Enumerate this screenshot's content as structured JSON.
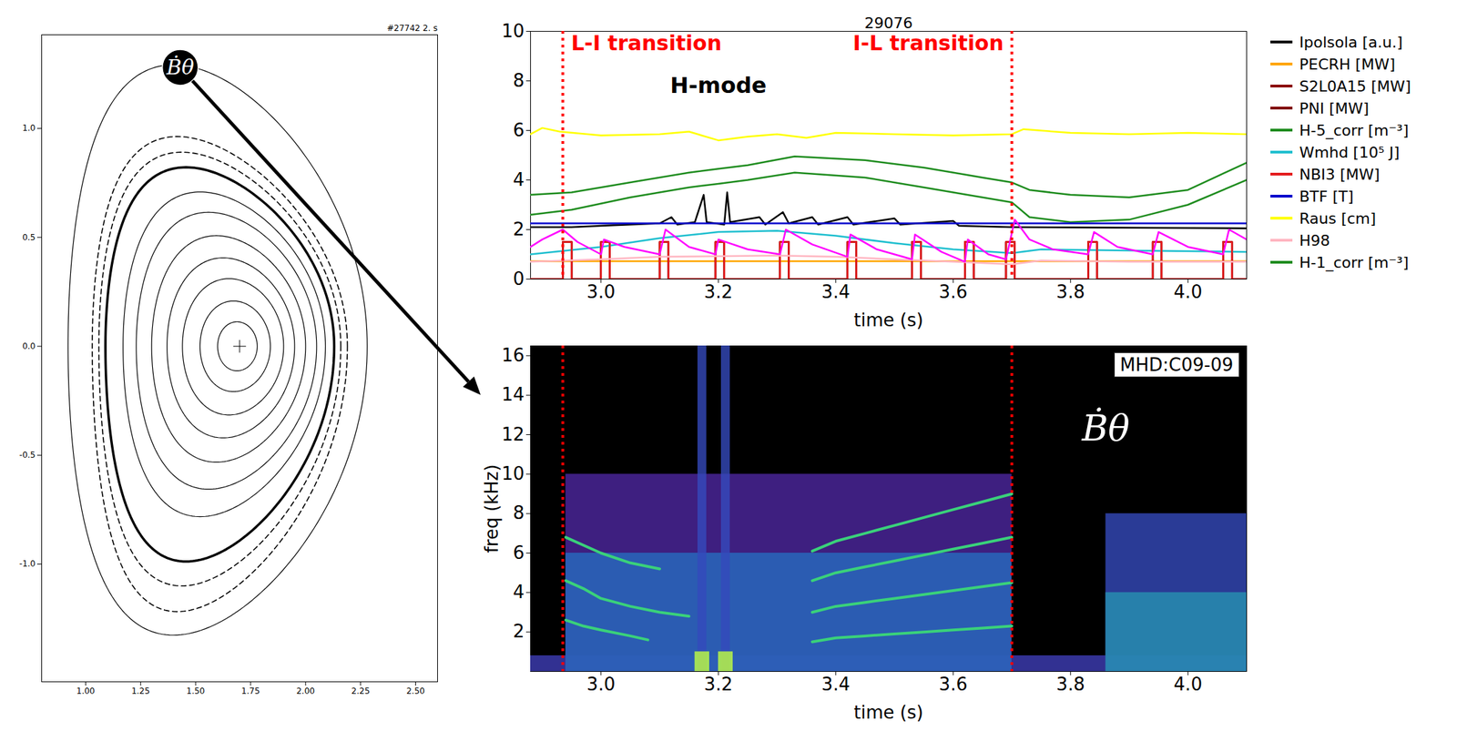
{
  "chart_data": [
    {
      "type": "equilibrium",
      "title": "#27742 2. s",
      "xlim": [
        0.8,
        2.6
      ],
      "xticks": [
        {
          "value": 1,
          "label": "1.00"
        },
        1.25,
        {
          "value": 1.5,
          "label": "1.50"
        },
        1.75,
        {
          "value": 2,
          "label": "2.00"
        },
        2.25,
        {
          "value": 2.5,
          "label": "2.50"
        }
      ],
      "ylim": [
        -1.54,
        1.43
      ],
      "yticks": [
        {
          "value": -1,
          "label": "-1.0"
        },
        -0.5,
        {
          "value": 0,
          "label": "0.0"
        },
        0.5,
        {
          "value": 1,
          "label": "1.0"
        }
      ],
      "surfaces": [
        {
          "R0": 1.69,
          "a": 0.09,
          "kappa": 1.25,
          "kappa_lower": 1.25,
          "delta": 0.02,
          "line_style": "solid"
        },
        {
          "R0": 1.68,
          "a": 0.16,
          "kappa": 1.3,
          "kappa_lower": 1.3,
          "delta": 0.05,
          "line_style": "solid"
        },
        {
          "R0": 1.67,
          "a": 0.23,
          "kappa": 1.35,
          "kappa_lower": 1.37,
          "delta": 0.08,
          "line_style": "solid"
        },
        {
          "R0": 1.66,
          "a": 0.29,
          "kappa": 1.4,
          "kappa_lower": 1.45,
          "delta": 0.12,
          "line_style": "solid"
        },
        {
          "R0": 1.65,
          "a": 0.35,
          "kappa": 1.45,
          "kappa_lower": 1.52,
          "delta": 0.16,
          "line_style": "solid"
        },
        {
          "R0": 1.64,
          "a": 0.41,
          "kappa": 1.5,
          "kappa_lower": 1.6,
          "delta": 0.2,
          "line_style": "solid"
        },
        {
          "R0": 1.63,
          "a": 0.46,
          "kappa": 1.54,
          "kappa_lower": 1.7,
          "delta": 0.24,
          "line_style": "solid"
        },
        {
          "R0": 1.61,
          "a": 0.52,
          "kappa": 1.58,
          "kappa_lower": 1.9,
          "delta": 0.3,
          "line_style": "thick"
        },
        {
          "R0": 1.61,
          "a": 0.55,
          "kappa": 1.62,
          "kappa_lower": 2.0,
          "delta": 0.32,
          "line_style": "dashed"
        },
        {
          "R0": 1.61,
          "a": 0.58,
          "kappa": 1.66,
          "kappa_lower": 2.1,
          "delta": 0.34,
          "line_style": "dashed"
        },
        {
          "R0": 1.6,
          "a": 0.68,
          "kappa": 1.9,
          "kappa_lower": 1.95,
          "delta": 0.3,
          "line_style": "solid"
        }
      ],
      "magnetic_axis": [
        1.7,
        0.0
      ],
      "probe": [
        1.43,
        1.28
      ],
      "probe_label": "Ḃθ"
    },
    {
      "type": "line",
      "title": "29076",
      "xlabel": "time (s)",
      "xlim": [
        2.88,
        4.1
      ],
      "xticks": [
        {
          "value": 3,
          "label": "3.0"
        },
        3.2,
        3.4,
        3.6,
        3.8,
        {
          "value": 4,
          "label": "4.0"
        }
      ],
      "ylim": [
        0,
        10
      ],
      "yticks": [
        0,
        2,
        4,
        6,
        8,
        10
      ],
      "legend": "right",
      "events": [
        {
          "x": 2.935,
          "label": "L-I transition"
        },
        {
          "x": 3.7,
          "label": "I-L transition"
        }
      ],
      "annotations": [
        {
          "text": "H-mode",
          "x": 3.2,
          "y": 7.8
        }
      ],
      "series": [
        {
          "name": "Ipolsola [a.u.]",
          "color": "#000000",
          "x": [
            2.88,
            2.95,
            3.0,
            3.05,
            3.1,
            3.12,
            3.13,
            3.16,
            3.175,
            3.18,
            3.21,
            3.215,
            3.22,
            3.27,
            3.28,
            3.31,
            3.32,
            3.36,
            3.37,
            3.42,
            3.43,
            3.5,
            3.51,
            3.6,
            3.61,
            3.7,
            4.1
          ],
          "values": [
            2.1,
            2.1,
            2.15,
            2.2,
            2.25,
            2.5,
            2.2,
            2.3,
            3.4,
            2.3,
            2.2,
            3.5,
            2.3,
            2.5,
            2.2,
            2.7,
            2.25,
            2.5,
            2.2,
            2.5,
            2.2,
            2.45,
            2.2,
            2.35,
            2.15,
            2.1,
            2.05
          ]
        },
        {
          "name": "PECRH [MW]",
          "color": "#ffa500",
          "x": [
            2.88,
            4.1
          ],
          "values": [
            0.72,
            0.72
          ]
        },
        {
          "name": "S2L0A15 [MW]",
          "color": "#8b0000",
          "x": [
            2.88,
            2.935,
            2.935,
            2.95,
            2.95,
            3.0,
            3.0,
            3.015,
            3.015,
            3.1,
            3.1,
            3.115,
            3.115,
            3.195,
            3.195,
            3.21,
            3.21,
            3.305,
            3.305,
            3.32,
            3.32,
            3.42,
            3.42,
            3.435,
            3.435,
            3.53,
            3.53,
            3.545,
            3.545,
            3.62,
            3.62,
            3.635,
            3.635,
            3.69,
            3.69,
            3.705,
            3.705,
            3.83,
            3.83,
            3.845,
            3.845,
            3.94,
            3.94,
            3.955,
            3.955,
            4.06,
            4.06,
            4.075,
            4.075,
            4.1
          ],
          "values": [
            0,
            0,
            1.5,
            1.5,
            0,
            0,
            1.5,
            1.5,
            0,
            0,
            1.5,
            1.5,
            0,
            0,
            1.5,
            1.5,
            0,
            0,
            1.5,
            1.5,
            0,
            0,
            1.5,
            1.5,
            0,
            0,
            1.5,
            1.5,
            0,
            0,
            1.5,
            1.5,
            0,
            0,
            1.5,
            1.5,
            0,
            0,
            1.5,
            1.5,
            0,
            0,
            1.5,
            1.5,
            0,
            0,
            1.5,
            1.5,
            0,
            0
          ]
        },
        {
          "name": "PNI [MW]",
          "color": "#800000",
          "x": [
            2.88,
            2.935,
            2.935,
            2.95,
            2.95,
            3.0,
            3.0,
            3.015,
            3.015,
            3.1,
            3.1,
            3.115,
            3.115,
            3.195,
            3.195,
            3.21,
            3.21,
            3.305,
            3.305,
            3.32,
            3.32,
            3.42,
            3.42,
            3.435,
            3.435,
            3.53,
            3.53,
            3.545,
            3.545,
            3.62,
            3.62,
            3.635,
            3.635,
            3.69,
            3.69,
            3.705,
            3.705,
            3.83,
            3.83,
            3.845,
            3.845,
            3.94,
            3.94,
            3.955,
            3.955,
            4.06,
            4.06,
            4.075,
            4.075,
            4.1
          ],
          "values": [
            0,
            0,
            1.5,
            1.5,
            0,
            0,
            1.5,
            1.5,
            0,
            0,
            1.5,
            1.5,
            0,
            0,
            1.5,
            1.5,
            0,
            0,
            1.5,
            1.5,
            0,
            0,
            1.5,
            1.5,
            0,
            0,
            1.5,
            1.5,
            0,
            0,
            1.5,
            1.5,
            0,
            0,
            1.5,
            1.5,
            0,
            0,
            1.5,
            1.5,
            0,
            0,
            1.5,
            1.5,
            0,
            0,
            1.5,
            1.5,
            0,
            0
          ]
        },
        {
          "name": "H-5_corr [m⁻³]",
          "color": "#1e8c1e",
          "x": [
            2.88,
            2.95,
            3.05,
            3.15,
            3.2,
            3.25,
            3.33,
            3.45,
            3.55,
            3.65,
            3.7,
            3.73,
            3.8,
            3.9,
            4.0,
            4.1
          ],
          "values": [
            2.6,
            2.8,
            3.3,
            3.7,
            3.85,
            4.0,
            4.3,
            4.1,
            3.7,
            3.3,
            3.1,
            2.5,
            2.3,
            2.4,
            3.0,
            4.0
          ]
        },
        {
          "name": "Wmhd [10⁵ J]",
          "color": "#1fbfcf",
          "x": [
            2.88,
            3.0,
            3.1,
            3.2,
            3.3,
            3.4,
            3.5,
            3.6,
            3.7,
            3.75,
            3.9,
            4.1
          ],
          "values": [
            1.0,
            1.3,
            1.65,
            1.9,
            1.95,
            1.75,
            1.45,
            1.2,
            1.05,
            1.2,
            1.15,
            1.1
          ]
        },
        {
          "name": "NBI3 [MW]",
          "color": "#e41a1c",
          "x": [
            2.88,
            2.935,
            2.935,
            2.95,
            2.95,
            3.0,
            3.0,
            3.015,
            3.015,
            3.1,
            3.1,
            3.115,
            3.115,
            3.195,
            3.195,
            3.21,
            3.21,
            3.305,
            3.305,
            3.32,
            3.32,
            3.42,
            3.42,
            3.435,
            3.435,
            3.53,
            3.53,
            3.545,
            3.545,
            3.62,
            3.62,
            3.635,
            3.635,
            3.69,
            3.69,
            3.705,
            3.705,
            3.83,
            3.83,
            3.845,
            3.845,
            3.94,
            3.94,
            3.955,
            3.955,
            4.06,
            4.06,
            4.075,
            4.075,
            4.1
          ],
          "values": [
            0,
            0,
            1.5,
            1.5,
            0,
            0,
            1.5,
            1.5,
            0,
            0,
            1.5,
            1.5,
            0,
            0,
            1.5,
            1.5,
            0,
            0,
            1.5,
            1.5,
            0,
            0,
            1.5,
            1.5,
            0,
            0,
            1.5,
            1.5,
            0,
            0,
            1.5,
            1.5,
            0,
            0,
            1.5,
            1.5,
            0,
            0,
            1.5,
            1.5,
            0,
            0,
            1.5,
            1.5,
            0,
            0,
            1.5,
            1.5,
            0,
            0
          ]
        },
        {
          "name": "BTF [T]",
          "color": "#0000cc",
          "x": [
            2.88,
            4.1
          ],
          "values": [
            2.25,
            2.25
          ]
        },
        {
          "name": "Raus [cm]",
          "color": "#ffff00",
          "x": [
            2.88,
            2.9,
            2.93,
            3.0,
            3.1,
            3.15,
            3.2,
            3.25,
            3.3,
            3.35,
            3.4,
            3.5,
            3.6,
            3.7,
            3.72,
            3.8,
            3.9,
            4.0,
            4.1
          ],
          "values": [
            5.85,
            6.1,
            5.95,
            5.8,
            5.85,
            5.95,
            5.6,
            5.75,
            5.85,
            5.7,
            5.9,
            5.85,
            5.8,
            5.85,
            6.05,
            5.9,
            5.85,
            5.9,
            5.85
          ]
        },
        {
          "name": "H98",
          "color": "#ffb6c1",
          "x": [
            2.88,
            3.0,
            3.1,
            3.3,
            3.4,
            3.5,
            3.6,
            3.7,
            3.75,
            3.9,
            4.1
          ],
          "values": [
            0.7,
            0.8,
            0.9,
            0.95,
            0.9,
            0.8,
            0.7,
            0.6,
            0.75,
            0.7,
            0.7
          ]
        },
        {
          "name": "H-1_corr [m⁻³]",
          "color": "#1e8c1e",
          "x": [
            2.88,
            2.95,
            3.05,
            3.15,
            3.2,
            3.25,
            3.33,
            3.45,
            3.55,
            3.65,
            3.7,
            3.73,
            3.8,
            3.9,
            4.0,
            4.1
          ],
          "values": [
            3.4,
            3.5,
            3.9,
            4.3,
            4.45,
            4.6,
            4.95,
            4.8,
            4.5,
            4.1,
            3.9,
            3.6,
            3.4,
            3.3,
            3.6,
            4.7
          ]
        },
        {
          "color": "#ff00ff",
          "x": [
            2.88,
            2.9,
            2.935,
            2.96,
            3.0,
            3.005,
            3.04,
            3.1,
            3.11,
            3.15,
            3.195,
            3.2,
            3.25,
            3.305,
            3.315,
            3.36,
            3.42,
            3.425,
            3.47,
            3.53,
            3.535,
            3.58,
            3.62,
            3.625,
            3.66,
            3.69,
            3.705,
            3.73,
            3.77,
            3.83,
            3.84,
            3.88,
            3.94,
            3.95,
            4.0,
            4.06,
            4.07,
            4.1
          ],
          "values": [
            1.3,
            1.6,
            2.0,
            1.5,
            1.0,
            1.6,
            1.3,
            1.0,
            2.0,
            1.3,
            1.0,
            1.6,
            1.2,
            1.0,
            2.0,
            1.4,
            0.9,
            1.8,
            1.2,
            0.8,
            1.8,
            1.1,
            0.7,
            1.6,
            1.0,
            0.8,
            2.4,
            1.6,
            1.2,
            1.0,
            1.9,
            1.3,
            1.0,
            1.9,
            1.3,
            1.0,
            2.0,
            1.6
          ]
        }
      ]
    },
    {
      "type": "spectrogram",
      "xlabel": "time (s)",
      "ylabel": "freq (kHz)",
      "xlim": [
        2.88,
        4.1
      ],
      "xticks": [
        {
          "value": 3,
          "label": "3.0"
        },
        3.2,
        3.4,
        3.6,
        3.8,
        {
          "value": 4,
          "label": "4.0"
        }
      ],
      "ylim": [
        0,
        16.5
      ],
      "yticks": [
        2,
        4,
        6,
        8,
        10,
        12,
        14,
        16
      ],
      "label": "MHD:C09-09",
      "annotations": [
        {
          "text": "Ḃθ",
          "x": 3.86,
          "y": 12.3
        }
      ],
      "broadband": [
        {
          "x1": 2.88,
          "x2": 4.1,
          "y1": 0,
          "y2": 0.8,
          "level": 0.4
        },
        {
          "x1": 2.94,
          "x2": 3.7,
          "y1": 0,
          "y2": 10,
          "level": 0.3
        },
        {
          "x1": 2.94,
          "x2": 3.7,
          "y1": 0,
          "y2": 6,
          "level": 0.55
        },
        {
          "x1": 3.86,
          "x2": 4.1,
          "y1": 0,
          "y2": 8,
          "level": 0.45
        },
        {
          "x1": 3.86,
          "x2": 4.1,
          "y1": 0,
          "y2": 4,
          "level": 0.65
        },
        {
          "x1": 3.165,
          "x2": 3.18,
          "y1": 0,
          "y2": 16.5,
          "level": 0.45
        },
        {
          "x1": 3.205,
          "x2": 3.22,
          "y1": 0,
          "y2": 16.5,
          "level": 0.45
        },
        {
          "x1": 3.16,
          "x2": 3.185,
          "y1": 0,
          "y2": 1,
          "level": 1
        },
        {
          "x1": 3.2,
          "x2": 3.225,
          "y1": 0,
          "y2": 1,
          "level": 1
        }
      ],
      "modes": [
        {
          "x": [
            2.94,
            2.97,
            3.0,
            3.05,
            3.08
          ],
          "values": [
            2.6,
            2.3,
            2.1,
            1.8,
            1.6
          ]
        },
        {
          "x": [
            2.94,
            2.97,
            3.0,
            3.05,
            3.1,
            3.15
          ],
          "values": [
            4.6,
            4.2,
            3.7,
            3.3,
            3.0,
            2.8
          ]
        },
        {
          "x": [
            2.94,
            3.0,
            3.05,
            3.1
          ],
          "values": [
            6.8,
            6.0,
            5.5,
            5.2
          ]
        },
        {
          "x": [
            3.36,
            3.4,
            3.45,
            3.5,
            3.55,
            3.6,
            3.65,
            3.7
          ],
          "values": [
            1.5,
            1.7,
            1.8,
            1.9,
            2.0,
            2.1,
            2.2,
            2.3
          ]
        },
        {
          "x": [
            3.36,
            3.4,
            3.45,
            3.5,
            3.55,
            3.6,
            3.65,
            3.7
          ],
          "values": [
            3.0,
            3.3,
            3.5,
            3.7,
            3.9,
            4.1,
            4.3,
            4.5
          ]
        },
        {
          "x": [
            3.36,
            3.4,
            3.45,
            3.5,
            3.55,
            3.6,
            3.65,
            3.7
          ],
          "values": [
            4.6,
            5.0,
            5.3,
            5.6,
            5.9,
            6.2,
            6.5,
            6.8
          ]
        },
        {
          "x": [
            3.36,
            3.4,
            3.45,
            3.5,
            3.55,
            3.6,
            3.65,
            3.7
          ],
          "values": [
            6.1,
            6.6,
            7.0,
            7.4,
            7.8,
            8.2,
            8.6,
            9.0
          ]
        }
      ]
    }
  ]
}
